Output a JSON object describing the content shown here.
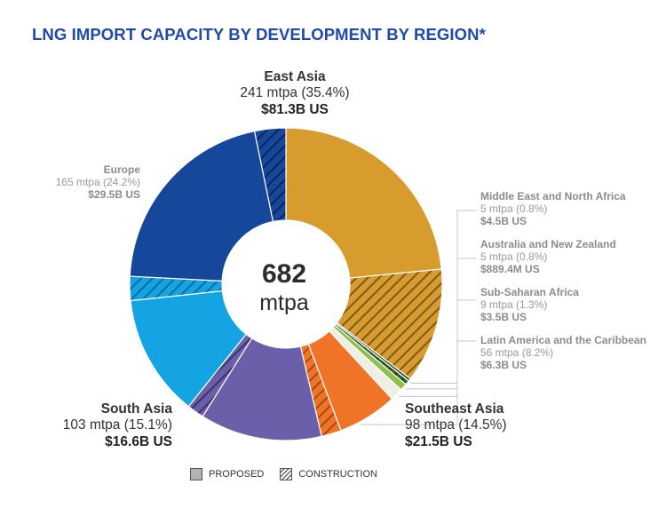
{
  "chart_data": {
    "type": "pie",
    "title": "LNG IMPORT CAPACITY BY DEVELOPMENT BY REGION*",
    "center": {
      "value": "682",
      "unit": "mtpa"
    },
    "total": 682,
    "legend": [
      {
        "key": "proposed",
        "label": "PROPOSED"
      },
      {
        "key": "construction",
        "label": "CONSTRUCTION"
      }
    ],
    "slices": [
      {
        "key": "east_asia",
        "name": "East Asia",
        "value_text": "241 mtpa (35.4%)",
        "cost": "$81.3B US",
        "value": 241,
        "proposed": 160,
        "construction": 81,
        "color": "#d89b2e",
        "dark": "#7a5a1c"
      },
      {
        "key": "mena",
        "name": "Middle East and North Africa",
        "value_text": "5 mtpa (0.8%)",
        "cost": "$4.5B US",
        "value": 5,
        "proposed": 2,
        "construction": 3,
        "color": "#2f5a26",
        "dark": "#1a3314"
      },
      {
        "key": "anz",
        "name": "Australia and New Zealand",
        "value_text": "5 mtpa (0.8%)",
        "cost": "$889.4M US",
        "value": 5,
        "proposed": 5,
        "construction": 0,
        "color": "#8fc04a",
        "dark": "#5a7d2a"
      },
      {
        "key": "ssa",
        "name": "Sub-Saharan Africa",
        "value_text": "9 mtpa (1.3%)",
        "cost": "$3.5B US",
        "value": 9,
        "proposed": 9,
        "construction": 0,
        "color": "#efefe4",
        "dark": "#b8b8a8"
      },
      {
        "key": "latam",
        "name": "Latin America and the Caribbean",
        "value_text": "56 mtpa (8.2%)",
        "cost": "$6.3B US",
        "value": 56,
        "proposed": 42,
        "construction": 14,
        "color": "#f07427",
        "dark": "#a84a14"
      },
      {
        "key": "se_asia",
        "name": "Southeast Asia",
        "value_text": "98 mtpa (14.5%)",
        "cost": "$21.5B US",
        "value": 98,
        "proposed": 86,
        "construction": 12,
        "color": "#6a5fa8",
        "dark": "#3a3370"
      },
      {
        "key": "s_asia",
        "name": "South Asia",
        "value_text": "103 mtpa (15.1%)",
        "cost": "$16.6B US",
        "value": 103,
        "proposed": 86,
        "construction": 17,
        "color": "#14a3e3",
        "dark": "#0c6e9c"
      },
      {
        "key": "europe",
        "name": "Europe",
        "value_text": "165 mtpa (24.2%)",
        "cost": "$29.5B US",
        "value": 165,
        "proposed": 143,
        "construction": 22,
        "color": "#15489a",
        "dark": "#0a2558"
      }
    ]
  }
}
